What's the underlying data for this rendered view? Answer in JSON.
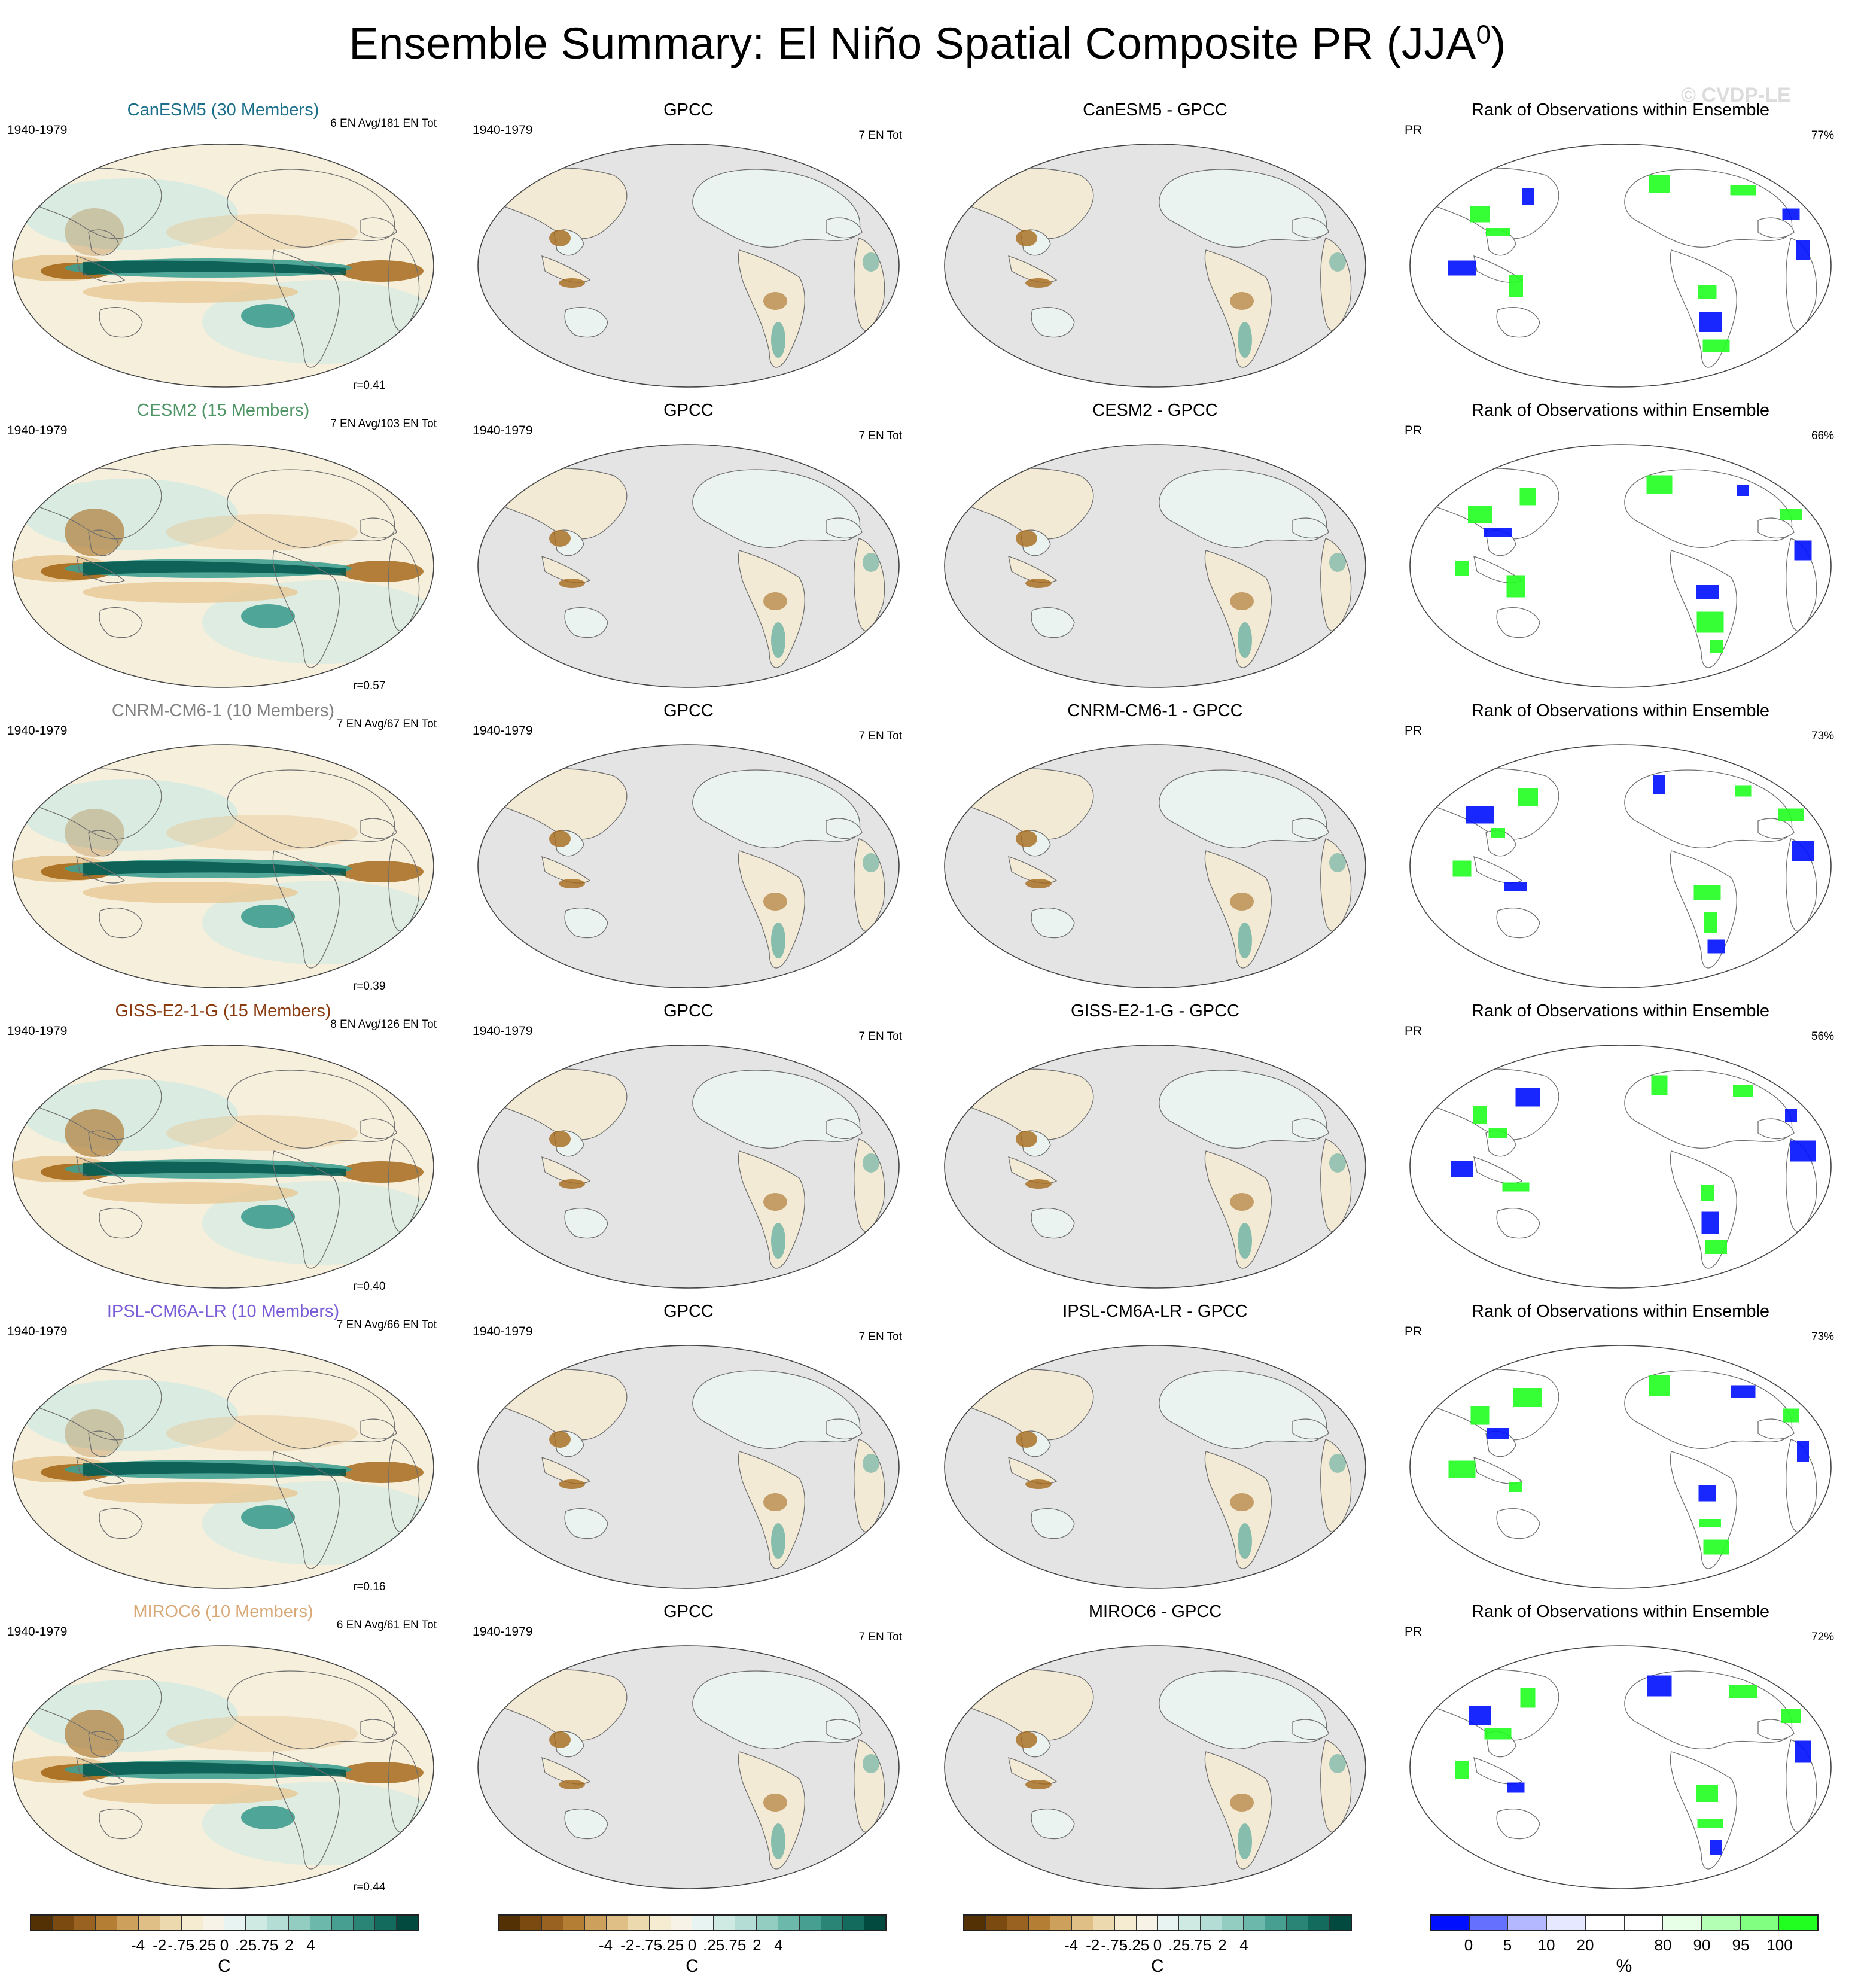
{
  "title_main": "Ensemble Summary: El Niño Spatial Composite PR (JJA",
  "title_sup": "0",
  "title_end": ")",
  "watermark": "© CVDP-LE",
  "colors": {
    "brown_dark": "#5a3608",
    "brown": "#a66a1c",
    "tan": "#e7c894",
    "cream": "#f6efdc",
    "teal_light": "#cfeae4",
    "teal": "#3f9e90",
    "teal_dark": "#04564c",
    "land_grey": "#e4e4e4",
    "rank_blue": "#0010ff",
    "rank_green": "#20ff20",
    "model_titles": [
      "#1b6f8a",
      "#4f9565",
      "#808080",
      "#8b3a0e",
      "#7a5cd6",
      "#d8a877"
    ]
  },
  "rows": [
    {
      "model": "CanESM5 (30 Members)",
      "model_color": "#1b6f8a",
      "period": "1940-1979",
      "en_info": "6 EN Avg/181 EN Tot",
      "r": "r=0.41",
      "obs": "GPCC",
      "obs_info": "7 EN Tot",
      "diff": "CanESM5 - GPCC",
      "rank_title": "Rank of Observations within Ensemble",
      "rank_var": "PR",
      "rank_pct": "77%"
    },
    {
      "model": "CESM2 (15 Members)",
      "model_color": "#4f9565",
      "period": "1940-1979",
      "en_info": "7 EN Avg/103 EN Tot",
      "r": "r=0.57",
      "obs": "GPCC",
      "obs_info": "7 EN Tot",
      "diff": "CESM2 - GPCC",
      "rank_title": "Rank of Observations within Ensemble",
      "rank_var": "PR",
      "rank_pct": "66%"
    },
    {
      "model": "CNRM-CM6-1 (10 Members)",
      "model_color": "#808080",
      "period": "1940-1979",
      "en_info": "7 EN Avg/67 EN Tot",
      "r": "r=0.39",
      "obs": "GPCC",
      "obs_info": "7 EN Tot",
      "diff": "CNRM-CM6-1 - GPCC",
      "rank_title": "Rank of Observations within Ensemble",
      "rank_var": "PR",
      "rank_pct": "73%"
    },
    {
      "model": "GISS-E2-1-G (15 Members)",
      "model_color": "#8b3a0e",
      "period": "1940-1979",
      "en_info": "8 EN Avg/126 EN Tot",
      "r": "r=0.40",
      "obs": "GPCC",
      "obs_info": "7 EN Tot",
      "diff": "GISS-E2-1-G - GPCC",
      "rank_title": "Rank of Observations within Ensemble",
      "rank_var": "PR",
      "rank_pct": "56%"
    },
    {
      "model": "IPSL-CM6A-LR (10 Members)",
      "model_color": "#7a5cd6",
      "period": "1940-1979",
      "en_info": "7 EN Avg/66 EN Tot",
      "r": "r=0.16",
      "obs": "GPCC",
      "obs_info": "7 EN Tot",
      "diff": "IPSL-CM6A-LR - GPCC",
      "rank_title": "Rank of Observations within Ensemble",
      "rank_var": "PR",
      "rank_pct": "73%"
    },
    {
      "model": "MIROC6 (10 Members)",
      "model_color": "#d8a877",
      "period": "1940-1979",
      "en_info": "6 EN Avg/61 EN Tot",
      "r": "r=0.44",
      "obs": "GPCC",
      "obs_info": "7 EN Tot",
      "diff": "MIROC6 - GPCC",
      "rank_title": "Rank of Observations within Ensemble",
      "rank_var": "PR",
      "rank_pct": "72%"
    }
  ],
  "colorbars": {
    "anomaly": {
      "colors": [
        "#543005",
        "#7a4a10",
        "#9a6220",
        "#b47e34",
        "#cda05c",
        "#dfbf85",
        "#ecd9ae",
        "#f5ecd2",
        "#f7f3e6",
        "#e8f4f1",
        "#cfe9e3",
        "#b3ddd5",
        "#93cdc2",
        "#6cb8ab",
        "#479f91",
        "#2a8577",
        "#136b5e",
        "#02493f"
      ],
      "ticks": [
        "-4",
        "-2",
        "-.75",
        "-.25",
        "0",
        ".25",
        ".75",
        "2",
        "4"
      ],
      "unit": "C"
    },
    "rank": {
      "colors": [
        "#0010ff",
        "#6670ff",
        "#b3b8ff",
        "#e6e8ff",
        "#ffffff",
        "#ffffff",
        "#e6ffe6",
        "#b3ffb3",
        "#80ff80",
        "#20ff20"
      ],
      "ticks": [
        "0",
        "5",
        "10",
        "20",
        "80",
        "90",
        "95",
        "100"
      ],
      "unit": "%"
    }
  }
}
